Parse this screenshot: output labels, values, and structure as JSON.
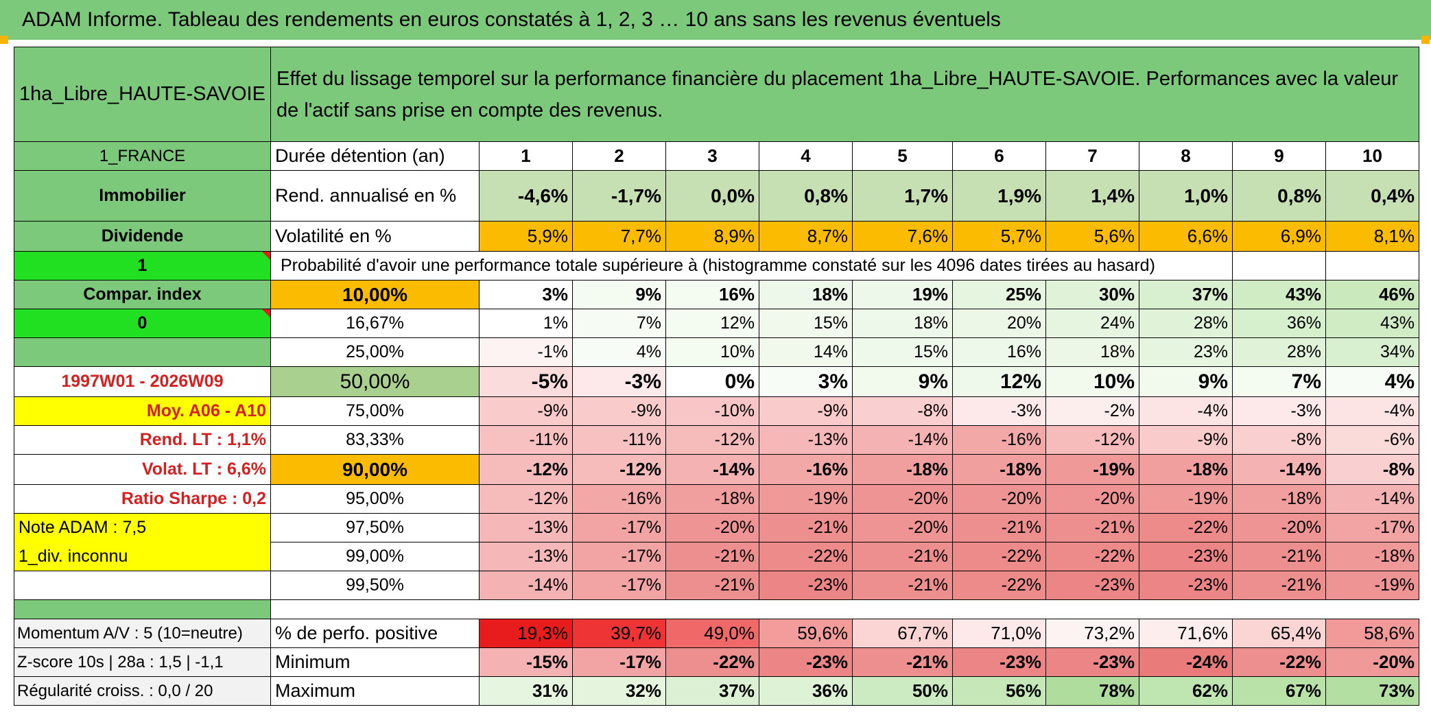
{
  "title": "ADAM Informe. Tableau des rendements en euros constatés à 1, 2, 3 … 10 ans sans les revenus éventuels",
  "colors": {
    "title_bg": "#7dc97b",
    "accent_orange": "#fbbb00",
    "yellow": "#ffff00",
    "bright_green": "#21e021",
    "dark_green_text": "#000000",
    "red_text": "#d42020"
  },
  "header": {
    "asset_name": "1ha_Libre_HAUTE-SAVOIE",
    "description": "Effet du lissage temporel sur la performance financière du placement 1ha_Libre_HAUTE-SAVOIE. Performances avec la valeur de l'actif sans prise en compte des revenus."
  },
  "left": {
    "country": "1_FRANCE",
    "category": "Immobilier",
    "type": "Dividende",
    "value_1": "1",
    "compar_index": "Compar. index",
    "value_0": "0",
    "period": "1997W01 - 2026W09",
    "moy": "Moy. A06 - A10",
    "rend_lt": "Rend. LT :   1,1%",
    "volat_lt": "Volat. LT :   6,6%",
    "ratio_sharpe": "Ratio Sharpe :    0,2",
    "note_adam": "Note ADAM : 7,5",
    "div": "1_div. inconnu",
    "momentum": "Momentum A/V : 5 (10=neutre)",
    "zscore": "Z-score 10s | 28a : 1,5 | -1,1",
    "regularite": "Régularité croiss. : 0,0 / 20"
  },
  "labels": {
    "duree": "Durée détention (an)",
    "rend": "Rend. annualisé en %",
    "volat": "Volatilité en %",
    "probability": "Probabilité d'avoir une performance totale supérieure à (histogramme constaté sur les 4096 dates tirées au hasard)",
    "perf_pos": "% de perfo. positive",
    "minimum": "Minimum",
    "maximum": "Maximum"
  },
  "years": [
    "1",
    "2",
    "3",
    "4",
    "5",
    "6",
    "7",
    "8",
    "9",
    "10"
  ],
  "rend": [
    "-4,6%",
    "-1,7%",
    "0,0%",
    "0,8%",
    "1,7%",
    "1,9%",
    "1,4%",
    "1,0%",
    "0,8%",
    "0,4%"
  ],
  "volat": [
    "5,9%",
    "7,7%",
    "8,9%",
    "8,7%",
    "7,6%",
    "5,7%",
    "5,6%",
    "6,6%",
    "6,9%",
    "8,1%"
  ],
  "percentiles": [
    {
      "p": "10,00%",
      "values": [
        "3%",
        "9%",
        "16%",
        "18%",
        "19%",
        "25%",
        "30%",
        "37%",
        "43%",
        "46%"
      ]
    },
    {
      "p": "16,67%",
      "values": [
        "1%",
        "7%",
        "12%",
        "15%",
        "18%",
        "20%",
        "24%",
        "28%",
        "36%",
        "43%"
      ]
    },
    {
      "p": "25,00%",
      "values": [
        "-1%",
        "4%",
        "10%",
        "14%",
        "15%",
        "16%",
        "18%",
        "23%",
        "28%",
        "34%"
      ]
    },
    {
      "p": "50,00%",
      "values": [
        "-5%",
        "-3%",
        "0%",
        "3%",
        "9%",
        "12%",
        "10%",
        "9%",
        "7%",
        "4%"
      ]
    },
    {
      "p": "75,00%",
      "values": [
        "-9%",
        "-9%",
        "-10%",
        "-9%",
        "-8%",
        "-3%",
        "-2%",
        "-4%",
        "-3%",
        "-4%"
      ]
    },
    {
      "p": "83,33%",
      "values": [
        "-11%",
        "-11%",
        "-12%",
        "-13%",
        "-14%",
        "-16%",
        "-12%",
        "-9%",
        "-8%",
        "-6%"
      ]
    },
    {
      "p": "90,00%",
      "values": [
        "-12%",
        "-12%",
        "-14%",
        "-16%",
        "-18%",
        "-18%",
        "-19%",
        "-18%",
        "-14%",
        "-8%"
      ]
    },
    {
      "p": "95,00%",
      "values": [
        "-12%",
        "-16%",
        "-18%",
        "-19%",
        "-20%",
        "-20%",
        "-20%",
        "-19%",
        "-18%",
        "-14%"
      ]
    },
    {
      "p": "97,50%",
      "values": [
        "-13%",
        "-17%",
        "-20%",
        "-21%",
        "-20%",
        "-21%",
        "-21%",
        "-22%",
        "-20%",
        "-17%"
      ]
    },
    {
      "p": "99,00%",
      "values": [
        "-13%",
        "-17%",
        "-21%",
        "-22%",
        "-21%",
        "-22%",
        "-22%",
        "-23%",
        "-21%",
        "-18%"
      ]
    },
    {
      "p": "99,50%",
      "values": [
        "-14%",
        "-17%",
        "-21%",
        "-23%",
        "-21%",
        "-22%",
        "-23%",
        "-23%",
        "-21%",
        "-19%"
      ]
    }
  ],
  "perf_pos": [
    "19,3%",
    "39,7%",
    "49,0%",
    "59,6%",
    "67,7%",
    "71,0%",
    "73,2%",
    "71,6%",
    "65,4%",
    "58,6%"
  ],
  "minimum": [
    "-15%",
    "-17%",
    "-22%",
    "-23%",
    "-21%",
    "-23%",
    "-23%",
    "-24%",
    "-22%",
    "-20%"
  ],
  "maximum": [
    "31%",
    "32%",
    "37%",
    "36%",
    "50%",
    "56%",
    "78%",
    "62%",
    "67%",
    "73%"
  ]
}
